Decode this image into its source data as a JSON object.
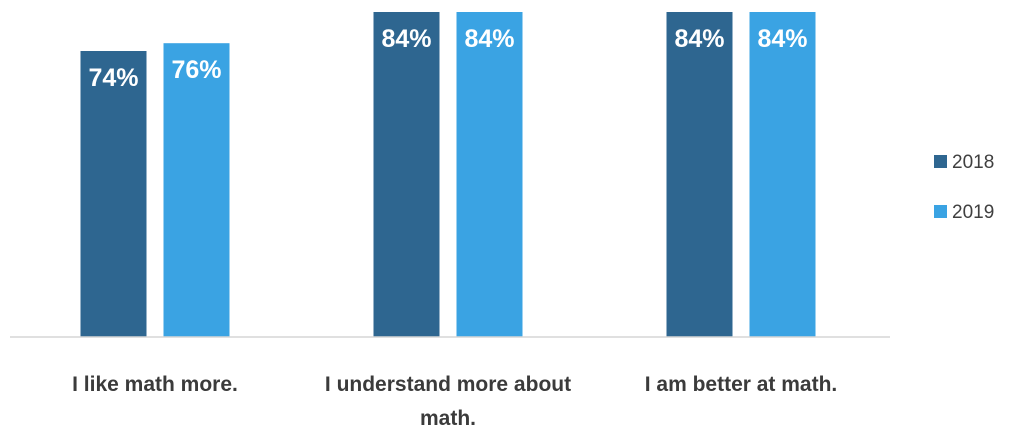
{
  "chart_data": {
    "type": "bar",
    "categories": [
      [
        "I like math more."
      ],
      [
        "I understand more about",
        "math."
      ],
      [
        "I am better at math."
      ]
    ],
    "series": [
      {
        "name": "2018",
        "values": [
          74,
          84,
          84
        ],
        "labels": [
          "74%",
          "84%",
          "84%"
        ],
        "color": "#2E6690"
      },
      {
        "name": "2019",
        "values": [
          76,
          84,
          84
        ],
        "labels": [
          "76%",
          "84%",
          "84%"
        ],
        "color": "#3AA3E3"
      }
    ],
    "title": "",
    "xlabel": "",
    "ylabel": "",
    "ylim": [
      40,
      84
    ],
    "grid": false,
    "legend": "right"
  }
}
